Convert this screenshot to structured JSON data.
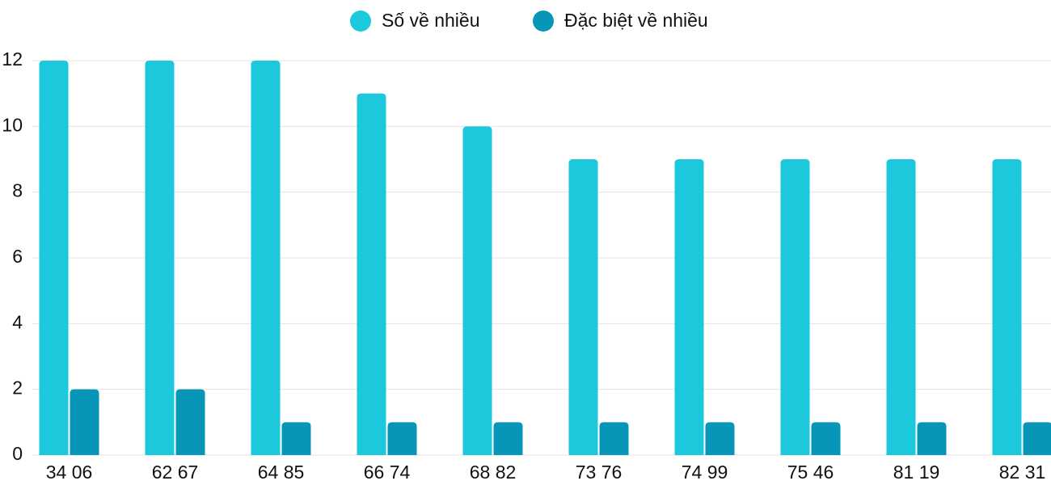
{
  "chart_data": {
    "type": "bar",
    "categories": [
      "34 06",
      "62 67",
      "64 85",
      "66 74",
      "68 82",
      "73 76",
      "74 99",
      "75 46",
      "81 19",
      "82 31"
    ],
    "series": [
      {
        "name": "Số về nhiều",
        "color": "#1bc8dc",
        "values": [
          12,
          12,
          12,
          11,
          10,
          9,
          9,
          9,
          9,
          9
        ]
      },
      {
        "name": "Đặc biệt về nhiều",
        "color": "#0796b8",
        "values": [
          2,
          2,
          1,
          1,
          1,
          1,
          1,
          1,
          1,
          1
        ]
      }
    ],
    "ylim": [
      0,
      12
    ],
    "yticks": [
      0,
      2,
      4,
      6,
      8,
      10,
      12
    ],
    "grid": true,
    "legend": "top"
  }
}
